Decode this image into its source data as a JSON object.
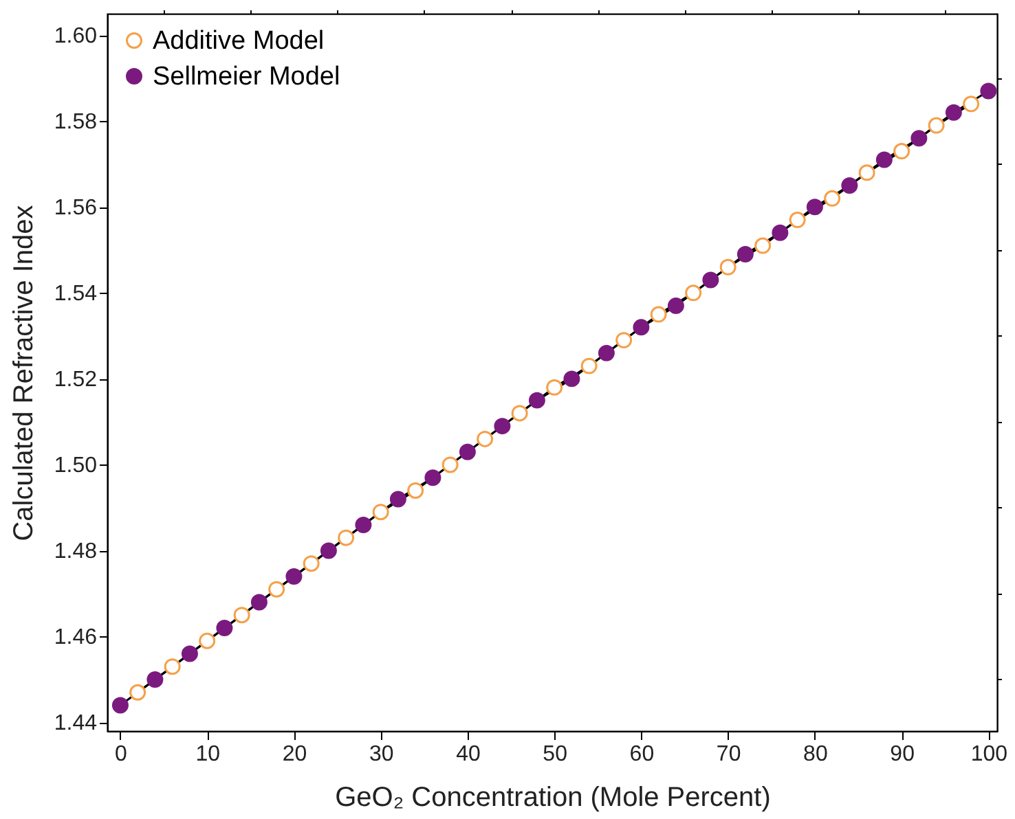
{
  "chart_data": {
    "type": "line",
    "xlabel": "GeO₂ Concentration (Mole Percent)",
    "ylabel": "Calculated Refractive Index",
    "xlim": [
      -1.5,
      101
    ],
    "ylim": [
      1.438,
      1.605
    ],
    "xticks": [
      0,
      {
        "value": 5,
        "label": null
      },
      10,
      {
        "value": 15,
        "label": null
      },
      20,
      {
        "value": 25,
        "label": null
      },
      30,
      {
        "value": 35,
        "label": null
      },
      40,
      {
        "value": 45,
        "label": null
      },
      50,
      {
        "value": 55,
        "label": null
      },
      60,
      {
        "value": 65,
        "label": null
      },
      70,
      {
        "value": 75,
        "label": null
      },
      80,
      {
        "value": 85,
        "label": null
      },
      90,
      {
        "value": 95,
        "label": null
      },
      100
    ],
    "yticks": [
      {
        "value": 1.44,
        "label": "1.44"
      },
      {
        "value": 1.45,
        "label": null
      },
      {
        "value": 1.46,
        "label": "1.46"
      },
      {
        "value": 1.47,
        "label": null
      },
      {
        "value": 1.48,
        "label": "1.48"
      },
      {
        "value": 1.49,
        "label": null
      },
      {
        "value": 1.5,
        "label": "1.50"
      },
      {
        "value": 1.51,
        "label": null
      },
      {
        "value": 1.52,
        "label": "1.52"
      },
      {
        "value": 1.53,
        "label": null
      },
      {
        "value": 1.54,
        "label": "1.54"
      },
      {
        "value": 1.55,
        "label": null
      },
      {
        "value": 1.56,
        "label": "1.56"
      },
      {
        "value": 1.57,
        "label": null
      },
      {
        "value": 1.58,
        "label": "1.58"
      },
      {
        "value": 1.59,
        "label": null
      },
      {
        "value": 1.6,
        "label": "1.60"
      }
    ],
    "grid": false,
    "legend": "top left",
    "marker": "circle",
    "line_style": "solid",
    "series": [
      {
        "name": "Additive Model",
        "color": "#f5a04a",
        "x": [
          2,
          6,
          10,
          14,
          18,
          22,
          26,
          30,
          34,
          38,
          42,
          46,
          50,
          54,
          58,
          62,
          66,
          70,
          74,
          78,
          82,
          86,
          90,
          94,
          98
        ],
        "values": [
          1.447,
          1.453,
          1.459,
          1.465,
          1.471,
          1.477,
          1.483,
          1.489,
          1.494,
          1.5,
          1.506,
          1.512,
          1.518,
          1.523,
          1.529,
          1.535,
          1.54,
          1.546,
          1.551,
          1.557,
          1.562,
          1.568,
          1.573,
          1.579,
          1.584
        ]
      },
      {
        "name": "Sellmeier Model",
        "color": "#7b1a7e",
        "x": [
          0,
          4,
          8,
          12,
          16,
          20,
          24,
          28,
          32,
          36,
          40,
          44,
          48,
          52,
          56,
          60,
          64,
          68,
          72,
          76,
          80,
          84,
          88,
          92,
          96,
          100
        ],
        "values": [
          1.444,
          1.45,
          1.456,
          1.462,
          1.468,
          1.474,
          1.48,
          1.486,
          1.492,
          1.497,
          1.503,
          1.509,
          1.515,
          1.52,
          1.526,
          1.532,
          1.537,
          1.543,
          1.549,
          1.554,
          1.56,
          1.565,
          1.571,
          1.576,
          1.582,
          1.587
        ]
      }
    ]
  }
}
